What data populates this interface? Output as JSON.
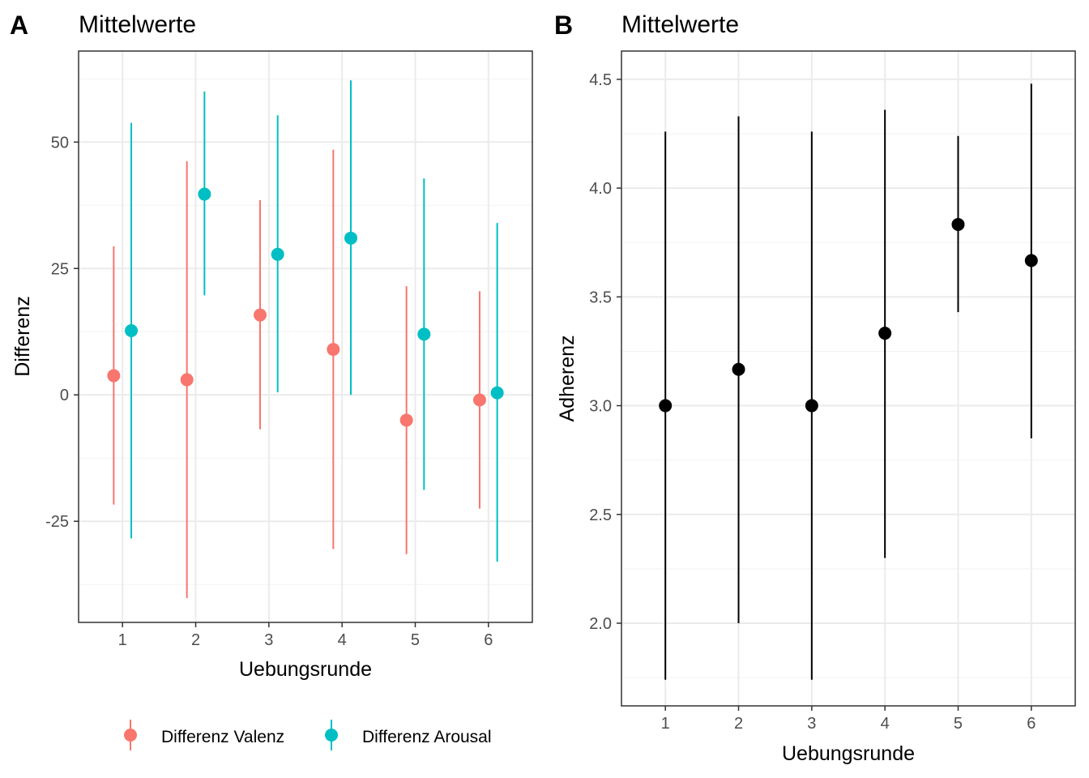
{
  "chart_data": [
    {
      "type": "scatter",
      "tag": "A",
      "title": "Mittelwerte",
      "xlabel": "Uebungsrunde",
      "ylabel": "Differenz",
      "categories": [
        "1",
        "2",
        "3",
        "4",
        "5",
        "6"
      ],
      "xlim": [
        0.4,
        6.6
      ],
      "ylim": [
        -45,
        68
      ],
      "yticks": [
        -25,
        0,
        25,
        50
      ],
      "grid": true,
      "legend_position": "bottom",
      "series": [
        {
          "name": "Differenz Valenz",
          "color": "#F8766D",
          "dodge": -0.12,
          "values": [
            3.8,
            3.0,
            15.8,
            9.0,
            -5.0,
            -1.0
          ],
          "lower": [
            -21.7,
            -40.2,
            -6.8,
            -30.5,
            -31.5,
            -22.5
          ],
          "upper": [
            29.4,
            46.2,
            38.5,
            48.5,
            21.5,
            20.5
          ]
        },
        {
          "name": "Differenz Arousal",
          "color": "#00BFC4",
          "dodge": 0.12,
          "values": [
            12.7,
            39.7,
            27.8,
            31.0,
            12.0,
            0.4
          ],
          "lower": [
            -28.4,
            19.7,
            0.5,
            0.0,
            -18.8,
            -33.0
          ],
          "upper": [
            53.8,
            60.0,
            55.3,
            62.2,
            42.8,
            34.0
          ]
        }
      ]
    },
    {
      "type": "scatter",
      "tag": "B",
      "title": "Mittelwerte",
      "xlabel": "Uebungsrunde",
      "ylabel": "Adherenz",
      "categories": [
        "1",
        "2",
        "3",
        "4",
        "5",
        "6"
      ],
      "xlim": [
        0.4,
        6.6
      ],
      "ylim": [
        1.62,
        4.63
      ],
      "yticks": [
        2.0,
        2.5,
        3.0,
        3.5,
        4.0,
        4.5
      ],
      "grid": true,
      "series": [
        {
          "color": "#000000",
          "values": [
            3.0,
            3.167,
            3.0,
            3.333,
            3.833,
            3.667
          ],
          "lower": [
            1.74,
            2.0,
            1.74,
            2.3,
            3.43,
            2.85
          ],
          "upper": [
            4.26,
            4.33,
            4.26,
            4.36,
            4.24,
            4.48
          ]
        }
      ]
    }
  ]
}
